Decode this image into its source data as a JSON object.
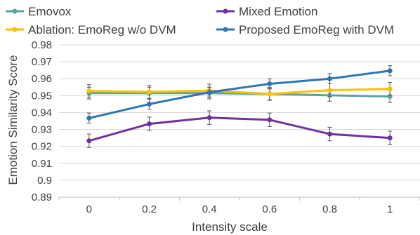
{
  "chart_data": {
    "type": "line",
    "xlabel": "Intensity scale",
    "ylabel": "Emotion Similarity Score",
    "x": [
      "0",
      "0.2",
      "0.4",
      "0.6",
      "0.8",
      "1"
    ],
    "y_ticks": [
      "0.89",
      "0.9",
      "0.91",
      "0.92",
      "0.93",
      "0.94",
      "0.95",
      "0.96",
      "0.97",
      "0.98"
    ],
    "ylim": [
      0.89,
      0.98
    ],
    "grid": "horizontal",
    "legend_position": "top",
    "series": [
      {
        "name": "Emovox",
        "color": "#5ba3a0",
        "values": [
          0.9515,
          0.9515,
          0.9515,
          0.951,
          0.9502,
          0.9495
        ],
        "errors": [
          0.0035,
          0.0035,
          0.0035,
          0.0035,
          0.0035,
          0.0035
        ]
      },
      {
        "name": "Mixed Emotion",
        "color": "#7030a0",
        "values": [
          0.9233,
          0.9333,
          0.937,
          0.9357,
          0.9273,
          0.925
        ],
        "errors": [
          0.004,
          0.004,
          0.004,
          0.004,
          0.004,
          0.004
        ]
      },
      {
        "name": "Ablation: EmoReg w/o DVM",
        "color": "#ffc000",
        "values": [
          0.9527,
          0.9522,
          0.953,
          0.951,
          0.9532,
          0.954
        ],
        "errors": [
          0.0038,
          0.0038,
          0.0038,
          0.0038,
          0.0038,
          0.0038
        ]
      },
      {
        "name": "Proposed EmoReg with DVM",
        "color": "#2e75b6",
        "values": [
          0.9367,
          0.945,
          0.952,
          0.957,
          0.96,
          0.9647
        ],
        "errors": [
          0.003,
          0.003,
          0.003,
          0.003,
          0.003,
          0.003
        ]
      }
    ]
  }
}
